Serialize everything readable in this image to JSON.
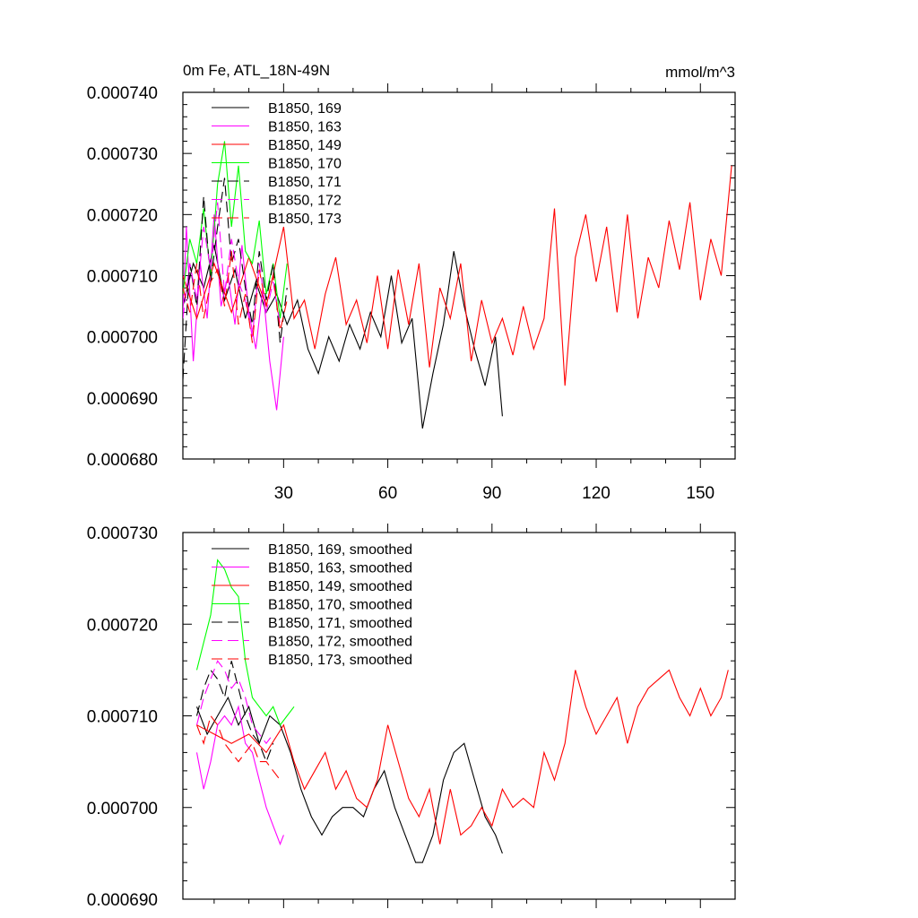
{
  "chart_data": [
    {
      "type": "line",
      "title": "0m Fe, ATL_18N-49N",
      "units": "mmol/m^3",
      "xlim": [
        1,
        160
      ],
      "ylim": [
        0.00068,
        0.00074
      ],
      "x_ticks": [
        30,
        60,
        90,
        120,
        150
      ],
      "x_tick_labels": [
        "30",
        "60",
        "90",
        "120",
        "150"
      ],
      "y_ticks": [
        0.00068,
        0.00069,
        0.0007,
        0.00071,
        0.00072,
        0.00073,
        0.00074
      ],
      "y_tick_labels": [
        "0.000680",
        "0.000690",
        "0.000700",
        "0.000710",
        "0.000720",
        "0.000730",
        "0.000740"
      ],
      "series": [
        {
          "name": "B1850, 169",
          "color": "#000000",
          "dash": "solid",
          "x": [
            1,
            4,
            7,
            10,
            13,
            16,
            19,
            22,
            25,
            28,
            31,
            34,
            37,
            40,
            43,
            46,
            49,
            52,
            55,
            58,
            61,
            64,
            67,
            70,
            73,
            76,
            79,
            82,
            85,
            88,
            91,
            93
          ],
          "values": [
            0.000705,
            0.000712,
            0.000708,
            0.000715,
            0.000706,
            0.000711,
            0.000703,
            0.000709,
            0.000704,
            0.000707,
            0.000702,
            0.000706,
            0.000698,
            0.000694,
            0.0007,
            0.000696,
            0.000702,
            0.000698,
            0.000704,
            0.0007,
            0.00071,
            0.000699,
            0.000703,
            0.000685,
            0.000694,
            0.000702,
            0.000714,
            0.000705,
            0.000698,
            0.000692,
            0.0007,
            0.000687
          ]
        },
        {
          "name": "B1850, 163",
          "color": "#ff00ff",
          "dash": "solid",
          "x": [
            1,
            2,
            4,
            6,
            8,
            10,
            12,
            14,
            16,
            18,
            20,
            22,
            24,
            26,
            28,
            30
          ],
          "values": [
            0.000704,
            0.000718,
            0.000696,
            0.000712,
            0.000703,
            0.00072,
            0.000705,
            0.00071,
            0.000702,
            0.000715,
            0.000704,
            0.000698,
            0.000708,
            0.000696,
            0.000688,
            0.0007
          ]
        },
        {
          "name": "B1850, 149",
          "color": "#ff0000",
          "dash": "solid",
          "x": [
            1,
            5,
            10,
            15,
            20,
            25,
            30,
            33,
            36,
            39,
            42,
            45,
            48,
            51,
            54,
            57,
            60,
            63,
            66,
            69,
            72,
            75,
            78,
            81,
            84,
            87,
            90,
            93,
            96,
            99,
            102,
            105,
            108,
            111,
            114,
            117,
            120,
            123,
            126,
            129,
            132,
            135,
            138,
            141,
            144,
            147,
            150,
            153,
            156,
            159
          ],
          "values": [
            0.00071,
            0.000703,
            0.000712,
            0.000704,
            0.000713,
            0.000705,
            0.000718,
            0.000703,
            0.000706,
            0.000698,
            0.000707,
            0.000713,
            0.000702,
            0.000706,
            0.000699,
            0.00071,
            0.000698,
            0.000711,
            0.000702,
            0.000712,
            0.000695,
            0.000708,
            0.000703,
            0.000712,
            0.000696,
            0.000706,
            0.000699,
            0.000703,
            0.000697,
            0.000705,
            0.000698,
            0.000703,
            0.000721,
            0.000692,
            0.000713,
            0.00072,
            0.000709,
            0.000718,
            0.000704,
            0.00072,
            0.000703,
            0.000713,
            0.000708,
            0.000719,
            0.000711,
            0.000722,
            0.000706,
            0.000716,
            0.00071,
            0.000728
          ]
        },
        {
          "name": "B1850, 170",
          "color": "#00ff00",
          "dash": "solid",
          "x": [
            1,
            3,
            5,
            7,
            9,
            11,
            13,
            15,
            17,
            19,
            21,
            23,
            25,
            27,
            29,
            31
          ],
          "values": [
            0.000707,
            0.000716,
            0.000712,
            0.000721,
            0.00071,
            0.000725,
            0.000732,
            0.000718,
            0.000728,
            0.000714,
            0.000712,
            0.000719,
            0.000707,
            0.000712,
            0.000703,
            0.000712
          ]
        },
        {
          "name": "B1850, 171",
          "color": "#000000",
          "dash": "dash",
          "x": [
            1,
            3,
            5,
            7,
            9,
            11,
            13,
            15,
            17,
            19,
            21,
            23,
            25,
            27,
            29,
            31
          ],
          "values": [
            0.000693,
            0.000712,
            0.000705,
            0.000723,
            0.000709,
            0.000718,
            0.000726,
            0.000712,
            0.000716,
            0.000708,
            0.000702,
            0.000714,
            0.000706,
            0.000712,
            0.000699,
            0.000708
          ]
        },
        {
          "name": "B1850, 172",
          "color": "#ff00ff",
          "dash": "dash",
          "x": [
            1,
            3,
            5,
            7,
            9,
            11,
            13,
            15,
            17,
            19,
            21,
            23,
            25,
            27,
            29
          ],
          "values": [
            0.000703,
            0.000712,
            0.000706,
            0.000718,
            0.000711,
            0.000722,
            0.000707,
            0.000716,
            0.000709,
            0.000706,
            0.0007,
            0.000712,
            0.000704,
            0.000709,
            0.000702
          ]
        },
        {
          "name": "B1850, 173",
          "color": "#ff0000",
          "dash": "dash",
          "x": [
            1,
            3,
            5,
            7,
            9,
            11,
            13,
            15,
            17,
            19,
            21,
            23,
            25,
            27,
            29,
            31
          ],
          "values": [
            0.000708,
            0.000704,
            0.000712,
            0.000703,
            0.000709,
            0.000711,
            0.000705,
            0.000714,
            0.000702,
            0.000707,
            0.000699,
            0.000711,
            0.000705,
            0.00071,
            0.000701,
            0.000706
          ]
        }
      ]
    },
    {
      "type": "line",
      "xlim": [
        1,
        160
      ],
      "ylim": [
        0.00069,
        0.00073
      ],
      "x_ticks": [
        30,
        60,
        90,
        120,
        150
      ],
      "y_ticks": [
        0.00069,
        0.0007,
        0.00071,
        0.00072,
        0.00073
      ],
      "y_tick_labels": [
        "0.000690",
        "0.000700",
        "0.000710",
        "0.000720",
        "0.000730"
      ],
      "series": [
        {
          "name": "B1850, 169, smoothed",
          "color": "#000000",
          "dash": "solid",
          "x": [
            5,
            8,
            11,
            14,
            17,
            20,
            23,
            26,
            29,
            32,
            35,
            38,
            41,
            44,
            47,
            50,
            53,
            56,
            59,
            62,
            65,
            68,
            70,
            73,
            76,
            79,
            82,
            85,
            88,
            91,
            93
          ],
          "values": [
            0.000711,
            0.000708,
            0.00071,
            0.000712,
            0.000709,
            0.000711,
            0.000707,
            0.00071,
            0.000709,
            0.000706,
            0.000702,
            0.000699,
            0.000697,
            0.000699,
            0.0007,
            0.0007,
            0.000699,
            0.000702,
            0.000704,
            0.0007,
            0.000697,
            0.000694,
            0.000694,
            0.000697,
            0.000703,
            0.000706,
            0.000707,
            0.000703,
            0.000699,
            0.000697,
            0.000695
          ]
        },
        {
          "name": "B1850, 163, smoothed",
          "color": "#ff00ff",
          "dash": "solid",
          "x": [
            5,
            7,
            9,
            11,
            13,
            15,
            17,
            19,
            21,
            23,
            25,
            27,
            29,
            30
          ],
          "values": [
            0.000706,
            0.000702,
            0.000705,
            0.000709,
            0.00071,
            0.000709,
            0.000711,
            0.000707,
            0.000706,
            0.000703,
            0.0007,
            0.000698,
            0.000696,
            0.000697
          ]
        },
        {
          "name": "B1850, 149, smoothed",
          "color": "#ff0000",
          "dash": "solid",
          "x": [
            5,
            10,
            15,
            20,
            25,
            30,
            33,
            36,
            39,
            42,
            45,
            48,
            51,
            54,
            57,
            60,
            63,
            66,
            69,
            72,
            75,
            78,
            81,
            84,
            87,
            90,
            93,
            96,
            99,
            102,
            105,
            108,
            111,
            114,
            117,
            120,
            123,
            126,
            129,
            132,
            135,
            138,
            141,
            144,
            147,
            150,
            153,
            156,
            158
          ],
          "values": [
            0.000709,
            0.000708,
            0.000707,
            0.000708,
            0.000706,
            0.000709,
            0.000705,
            0.000702,
            0.000704,
            0.000706,
            0.000702,
            0.000704,
            0.000701,
            0.0007,
            0.000703,
            0.000709,
            0.000705,
            0.000701,
            0.000699,
            0.000702,
            0.000696,
            0.000702,
            0.000697,
            0.000698,
            0.0007,
            0.000698,
            0.000702,
            0.0007,
            0.000701,
            0.0007,
            0.000706,
            0.000703,
            0.000707,
            0.000715,
            0.000711,
            0.000708,
            0.00071,
            0.000712,
            0.000707,
            0.000711,
            0.000713,
            0.000714,
            0.000715,
            0.000712,
            0.00071,
            0.000713,
            0.00071,
            0.000712,
            0.000715
          ]
        },
        {
          "name": "B1850, 170, smoothed",
          "color": "#00ff00",
          "dash": "solid",
          "x": [
            5,
            7,
            9,
            11,
            13,
            15,
            17,
            19,
            21,
            23,
            25,
            27,
            29,
            31,
            33
          ],
          "values": [
            0.000715,
            0.000718,
            0.000721,
            0.000727,
            0.000726,
            0.000724,
            0.000723,
            0.000716,
            0.000712,
            0.000711,
            0.00071,
            0.000711,
            0.000709,
            0.00071,
            0.000711
          ]
        },
        {
          "name": "B1850, 171, smoothed",
          "color": "#000000",
          "dash": "dash",
          "x": [
            5,
            7,
            9,
            11,
            13,
            15,
            17,
            19,
            21,
            23,
            25,
            27
          ],
          "values": [
            0.00071,
            0.000713,
            0.000715,
            0.000714,
            0.000712,
            0.000716,
            0.000713,
            0.00071,
            0.000708,
            0.000707,
            0.000705,
            0.000707
          ]
        },
        {
          "name": "B1850, 172, smoothed",
          "color": "#ff00ff",
          "dash": "dash",
          "x": [
            5,
            7,
            9,
            11,
            13,
            15,
            17,
            19,
            21,
            23,
            25,
            27
          ],
          "values": [
            0.000709,
            0.000712,
            0.000714,
            0.000716,
            0.000715,
            0.000713,
            0.000714,
            0.000712,
            0.000709,
            0.000708,
            0.000707,
            0.000708
          ]
        },
        {
          "name": "B1850, 173, smoothed",
          "color": "#ff0000",
          "dash": "dash",
          "x": [
            5,
            7,
            9,
            11,
            13,
            15,
            17,
            19,
            21,
            23,
            25,
            27,
            29
          ],
          "values": [
            0.000709,
            0.000707,
            0.00071,
            0.000709,
            0.000707,
            0.000706,
            0.000705,
            0.000706,
            0.000707,
            0.000705,
            0.000705,
            0.000704,
            0.000703
          ]
        }
      ]
    }
  ]
}
